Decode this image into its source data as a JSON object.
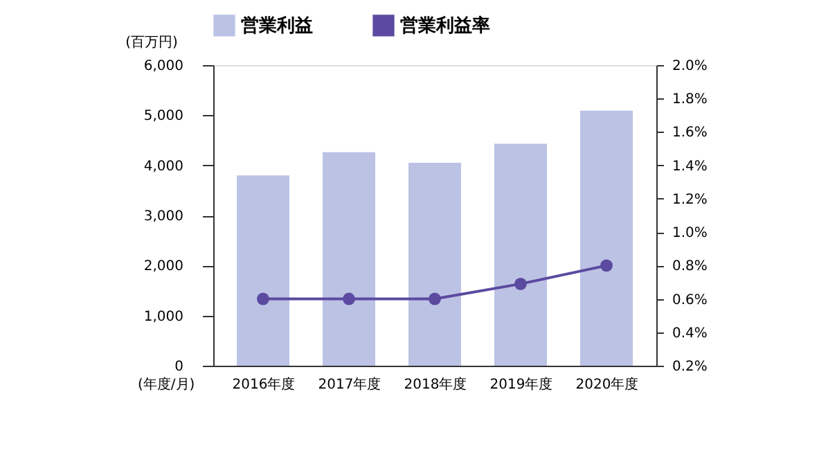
{
  "chart_data": {
    "type": "bar",
    "categories": [
      "2016年度",
      "2017年度",
      "2018年度",
      "2019年度",
      "2020年度"
    ],
    "series": [
      {
        "name": "営業利益",
        "color": "#bcc2e4",
        "values": [
          3800,
          4260,
          4050,
          4430,
          5090
        ]
      },
      {
        "name": "営業利益率",
        "color": "#5b4aa0",
        "type": "line",
        "axis": "y2",
        "values": [
          0.6,
          0.6,
          0.6,
          0.69,
          0.8
        ]
      }
    ],
    "ylabel": "(百万円)",
    "xlabel": "(年度/月)",
    "ylim": [
      0,
      6000
    ],
    "yticks": [
      {
        "value": 0,
        "label": "0"
      },
      {
        "value": 1000,
        "label": "1,000"
      },
      {
        "value": 2000,
        "label": "2,000"
      },
      {
        "value": 3000,
        "label": "3,000"
      },
      {
        "value": 4000,
        "label": "4,000"
      },
      {
        "value": 5000,
        "label": "5,000"
      },
      {
        "value": 6000,
        "label": "6,000"
      }
    ],
    "y2lim": [
      0.2,
      2.0
    ],
    "y2ticks": [
      {
        "value": 0.2,
        "label": "0.2%"
      },
      {
        "value": 0.4,
        "label": "0.4%"
      },
      {
        "value": 0.6,
        "label": "0.6%"
      },
      {
        "value": 0.8,
        "label": "0.8%"
      },
      {
        "value": 1.0,
        "label": "1.0%"
      },
      {
        "value": 1.2,
        "label": "1.2%"
      },
      {
        "value": 1.4,
        "label": "1.4%"
      },
      {
        "value": 1.6,
        "label": "1.6%"
      },
      {
        "value": 1.8,
        "label": "1.8%"
      },
      {
        "value": 2.0,
        "label": "2.0%"
      }
    ],
    "grid": false,
    "legend": "top",
    "marker": "circle",
    "line_style": "solid"
  }
}
